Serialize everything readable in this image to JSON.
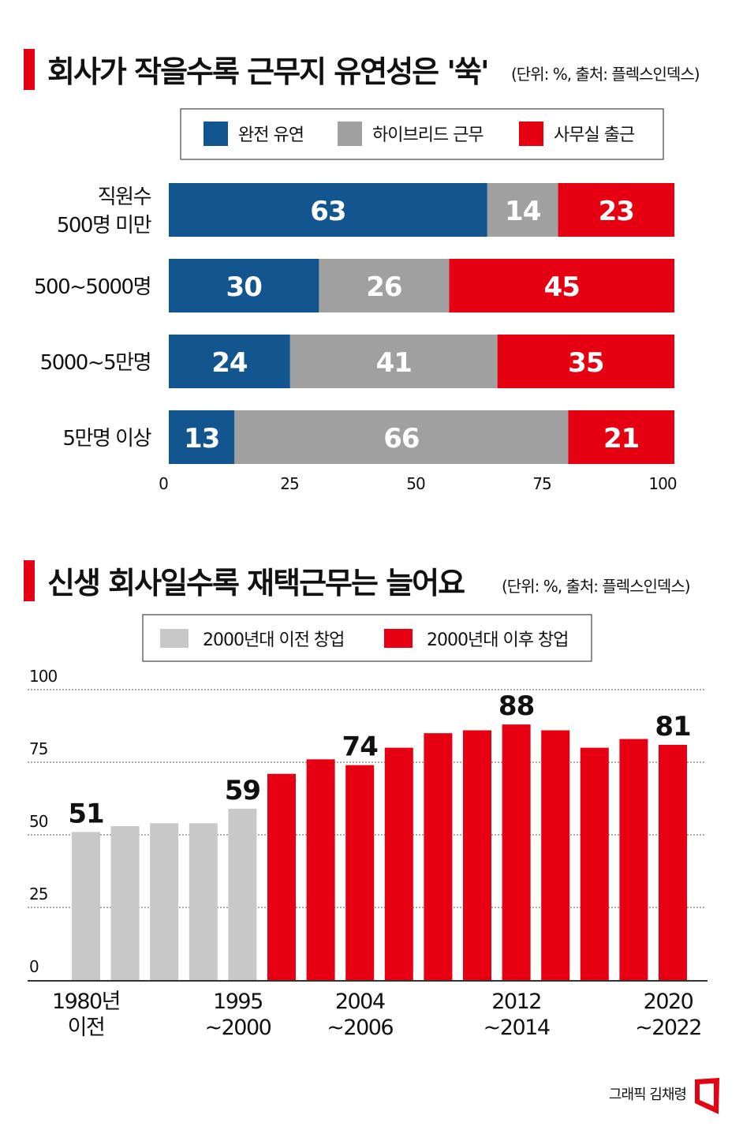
{
  "chart_data": [
    {
      "type": "bar",
      "orientation": "horizontal",
      "stacked": true,
      "title": "회사가 작을수록 근무지 유연성은 '쑥'",
      "subtitle": "(단위: %, 출처: 플렉스인덱스)",
      "categories": [
        "직원수 500명 미만",
        "500~5000명",
        "5000~5만명",
        "5만명 이상"
      ],
      "category_lines": [
        [
          "직원수",
          "500명 미만"
        ],
        [
          "500~5000명"
        ],
        [
          "5000~5만명"
        ],
        [
          "5만명 이상"
        ]
      ],
      "series": [
        {
          "name": "완전 유연",
          "values": [
            63,
            30,
            24,
            13
          ],
          "color": "#12558f"
        },
        {
          "name": "하이브리드 근무",
          "values": [
            14,
            26,
            41,
            66
          ],
          "color": "#a0a0a0"
        },
        {
          "name": "사무실 출근",
          "values": [
            23,
            45,
            35,
            21
          ],
          "color": "#e50012"
        }
      ],
      "xlim": [
        0,
        100
      ],
      "xticks": [
        "0",
        "25",
        "50",
        "75",
        "100"
      ],
      "legend": "top",
      "grid": false
    },
    {
      "type": "bar",
      "title": "신생 회사일수록 재택근무는 늘어요",
      "subtitle": "(단위: %, 출처: 플렉스인덱스)",
      "series": [
        {
          "name": "2000년대 이전 창업",
          "color": "#c8c8c8"
        },
        {
          "name": "2000년대 이후 창업",
          "color": "#e60012"
        }
      ],
      "values": [
        51,
        53,
        54,
        54,
        59,
        71,
        76,
        74,
        80,
        85,
        86,
        88,
        86,
        80,
        83,
        81
      ],
      "series_index": [
        0,
        0,
        0,
        0,
        0,
        1,
        1,
        1,
        1,
        1,
        1,
        1,
        1,
        1,
        1,
        1
      ],
      "data_labels": {
        "0": "51",
        "4": "59",
        "7": "74",
        "11": "88",
        "15": "81"
      },
      "x_labels": {
        "0": [
          "1980년",
          "이전"
        ],
        "4": [
          "1995",
          "~2000"
        ],
        "7": [
          "2004",
          "~2006"
        ],
        "11": [
          "2012",
          "~2014"
        ],
        "15": [
          "2020",
          "~2022"
        ]
      },
      "ylim": [
        0,
        100
      ],
      "yticks": [
        "0",
        "25",
        "50",
        "75",
        "100"
      ],
      "grid": true,
      "legend": "top"
    }
  ],
  "credit": "그래픽 김채령"
}
